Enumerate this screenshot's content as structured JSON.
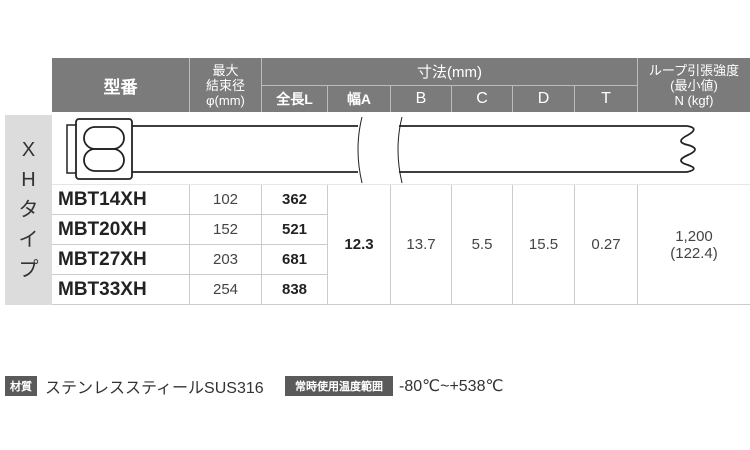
{
  "header": {
    "model": "型番",
    "max_dia": [
      "最大",
      "結束径",
      "φ(mm)"
    ],
    "dimensions": "寸法(mm)",
    "sub": [
      "全長L",
      "幅A",
      "B",
      "C",
      "D",
      "T"
    ],
    "strength": [
      "ループ引張強度",
      "(最小値)",
      "N (kgf)"
    ]
  },
  "type_label": [
    "X",
    "H",
    "タ",
    "イ",
    "プ"
  ],
  "rows": [
    {
      "model": "MBT14XH",
      "dia": "102",
      "L": "362"
    },
    {
      "model": "MBT20XH",
      "dia": "152",
      "L": "521"
    },
    {
      "model": "MBT27XH",
      "dia": "203",
      "L": "681"
    },
    {
      "model": "MBT33XH",
      "dia": "254",
      "L": "838"
    }
  ],
  "shared": {
    "A": "12.3",
    "B": "13.7",
    "C": "5.5",
    "D": "15.5",
    "T": "0.27",
    "strength": [
      "1,200",
      "(122.4)"
    ]
  },
  "footer": {
    "material_label": "材質",
    "material": "ステンレススティールSUS316",
    "temp_label": "常時使用温度範囲",
    "temp": "-80℃~+538℃"
  }
}
